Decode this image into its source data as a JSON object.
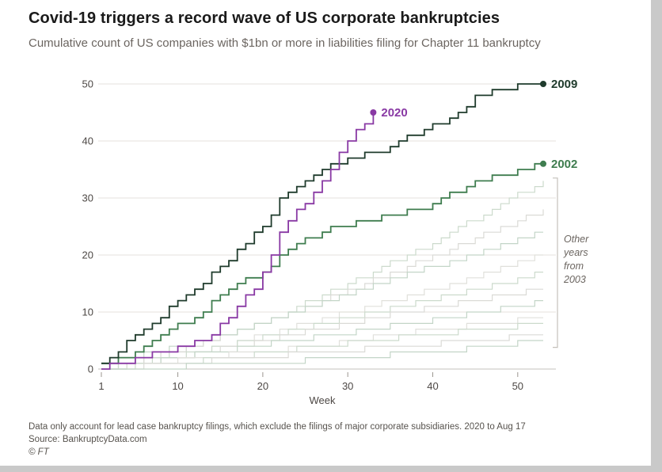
{
  "title": "Covid-19 triggers a record wave of US corporate bankruptcies",
  "subtitle": "Cumulative count of US companies with $1bn or more in liabilities filing for Chapter 11 bankruptcy",
  "footer": {
    "note": "Data only account for lead case bankruptcy filings, which exclude the filings of major corporate subsidiaries. 2020 to Aug 17",
    "source": "Source: BankruptcyData.com",
    "credit": "© FT"
  },
  "chart_data": {
    "type": "line",
    "step": true,
    "title": "Covid-19 triggers a record wave of US corporate bankruptcies",
    "xlabel": "Week",
    "ylabel": "",
    "x_ticks": [
      1,
      10,
      20,
      30,
      40,
      50
    ],
    "y_ticks": [
      0,
      10,
      20,
      30,
      40,
      50
    ],
    "x_range": [
      1,
      53
    ],
    "y_range": [
      0,
      50
    ],
    "grid": "horizontal",
    "legend_position": "end-of-line",
    "annotation": {
      "lines": [
        "Other",
        "years",
        "from",
        "2003"
      ],
      "bracket_value_top": 33.5,
      "bracket_value_bottom": 3.8
    },
    "series": [
      {
        "name": "2002",
        "color": "#3f7d4f",
        "start_week": 1,
        "values": [
          1,
          1,
          2,
          2,
          3,
          4,
          5,
          6,
          7,
          8,
          8,
          9,
          10,
          12,
          13,
          14,
          15,
          16,
          16,
          17,
          18,
          20,
          21,
          22,
          23,
          23,
          24,
          25,
          25,
          25,
          26,
          26,
          26,
          27,
          27,
          27,
          28,
          28,
          28,
          29,
          30,
          31,
          31,
          32,
          33,
          33,
          34,
          34,
          34,
          35,
          35,
          36,
          36
        ]
      },
      {
        "name": "2009",
        "color": "#1f3b2c",
        "start_week": 1,
        "values": [
          1,
          2,
          3,
          5,
          6,
          7,
          8,
          9,
          11,
          12,
          13,
          14,
          15,
          17,
          18,
          19,
          21,
          22,
          24,
          25,
          27,
          30,
          31,
          32,
          33,
          34,
          35,
          36,
          36,
          37,
          37,
          38,
          38,
          38,
          39,
          40,
          41,
          41,
          42,
          43,
          43,
          44,
          45,
          46,
          48,
          48,
          49,
          49,
          49,
          50,
          50,
          50,
          50
        ]
      },
      {
        "name": "2020",
        "color": "#8939a4",
        "start_week": 1,
        "values": [
          0,
          1,
          1,
          1,
          2,
          2,
          3,
          3,
          3,
          4,
          4,
          5,
          5,
          6,
          8,
          9,
          11,
          13,
          14,
          17,
          20,
          24,
          26,
          28,
          29,
          31,
          33,
          35,
          38,
          40,
          42,
          43,
          45
        ]
      }
    ],
    "other_years": [
      {
        "points": [
          [
            1,
            0
          ],
          [
            10,
            3
          ],
          [
            20,
            8
          ],
          [
            30,
            15
          ],
          [
            40,
            22
          ],
          [
            48,
            29
          ],
          [
            53,
            33
          ]
        ]
      },
      {
        "points": [
          [
            1,
            0
          ],
          [
            12,
            4
          ],
          [
            22,
            9
          ],
          [
            32,
            15
          ],
          [
            42,
            21
          ],
          [
            53,
            28
          ]
        ]
      },
      {
        "points": [
          [
            1,
            1
          ],
          [
            10,
            4
          ],
          [
            20,
            8
          ],
          [
            30,
            13
          ],
          [
            40,
            18
          ],
          [
            53,
            24
          ]
        ]
      },
      {
        "points": [
          [
            1,
            0
          ],
          [
            10,
            2
          ],
          [
            20,
            6
          ],
          [
            30,
            10
          ],
          [
            40,
            14
          ],
          [
            53,
            20
          ]
        ]
      },
      {
        "points": [
          [
            1,
            0
          ],
          [
            12,
            3
          ],
          [
            24,
            7
          ],
          [
            36,
            11
          ],
          [
            48,
            15
          ],
          [
            53,
            17
          ]
        ]
      },
      {
        "points": [
          [
            1,
            0
          ],
          [
            10,
            2
          ],
          [
            20,
            5
          ],
          [
            30,
            8
          ],
          [
            40,
            11
          ],
          [
            53,
            14
          ]
        ]
      },
      {
        "points": [
          [
            1,
            0
          ],
          [
            14,
            3
          ],
          [
            28,
            6
          ],
          [
            42,
            9
          ],
          [
            53,
            12
          ]
        ]
      },
      {
        "points": [
          [
            1,
            0
          ],
          [
            12,
            2
          ],
          [
            26,
            4
          ],
          [
            40,
            7
          ],
          [
            53,
            9
          ]
        ]
      },
      {
        "points": [
          [
            1,
            0
          ],
          [
            16,
            2
          ],
          [
            32,
            5
          ],
          [
            53,
            8
          ]
        ]
      },
      {
        "points": [
          [
            1,
            0
          ],
          [
            18,
            2
          ],
          [
            36,
            4
          ],
          [
            53,
            6
          ]
        ]
      },
      {
        "points": [
          [
            1,
            0
          ],
          [
            20,
            1
          ],
          [
            40,
            3
          ],
          [
            53,
            5
          ]
        ]
      }
    ],
    "muted_colors": [
      "#ccdacc",
      "#dadad6",
      "#c3d5c7",
      "#e0e0db"
    ]
  },
  "colors": {
    "background": "#ffffff",
    "gridline": "#e4e2dd",
    "baseline": "#c6c2bc",
    "axis_text": "#4d4845",
    "annotation_text": "#6b6560",
    "bracket": "#c4c0ba"
  }
}
